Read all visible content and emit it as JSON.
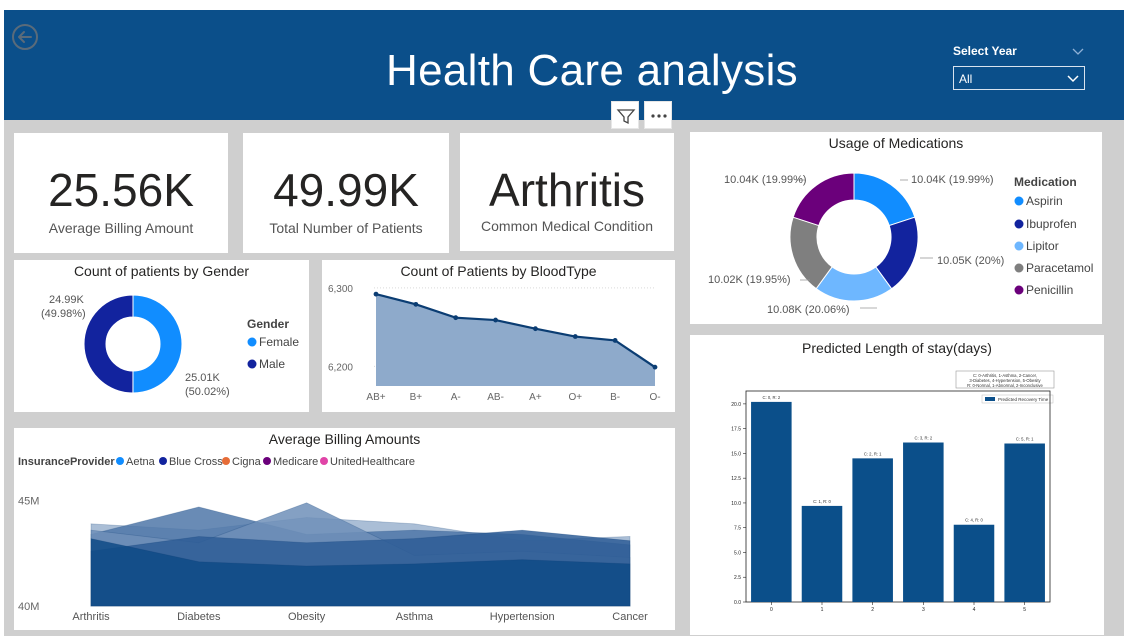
{
  "header": {
    "title": "Health Care analysis",
    "year_filter": {
      "label": "Select Year",
      "selected": "All"
    }
  },
  "kpis": [
    {
      "value": "25.56K",
      "label": "Average Billing Amount"
    },
    {
      "value": "49.99K",
      "label": "Total Number of Patients"
    },
    {
      "value": "Arthritis",
      "label": "Common Medical Condition"
    }
  ],
  "colors": {
    "banner": "#0b4f8a",
    "aspirin": "#118dff",
    "ibuprofen": "#12239e",
    "lipitor": "#6eb7ff",
    "paracetamol": "#7f7f7f",
    "penicillin": "#6b007b",
    "female": "#118dff",
    "male": "#12239e",
    "blood_area": "#8eaacb",
    "blood_line": "#0b3d73",
    "aetna": "#118dff",
    "bluecross": "#12239e",
    "cigna": "#e66c37",
    "medicare": "#6b007b",
    "unitedhealthcare": "#e044a7",
    "los_bar": "#0b4f8a"
  },
  "icons": {
    "back": "back-arrow-icon",
    "filter": "filter-icon",
    "more": "more-options-icon",
    "dropdown": "chevron-down-icon"
  },
  "chart_data": [
    {
      "id": "medications",
      "type": "pie",
      "title": "Usage of Medications",
      "legend_title": "Medication",
      "legend_position": "right",
      "slices": [
        {
          "name": "Aspirin",
          "value": 10.04,
          "label": "10.04K (19.99%)"
        },
        {
          "name": "Ibuprofen",
          "value": 10.05,
          "label": "10.05K (20%)"
        },
        {
          "name": "Lipitor",
          "value": 10.08,
          "label": "10.08K (20.06%)"
        },
        {
          "name": "Paracetamol",
          "value": 10.02,
          "label": "10.02K (19.95%)"
        },
        {
          "name": "Penicillin",
          "value": 10.04,
          "label": "10.04K (19.99%)"
        }
      ]
    },
    {
      "id": "gender",
      "type": "pie",
      "title": "Count of patients by Gender",
      "legend_title": "Gender",
      "legend_position": "right",
      "slices": [
        {
          "name": "Female",
          "value": 25.01,
          "label_value": "25.01K",
          "label_pct": "(50.02%)"
        },
        {
          "name": "Male",
          "value": 24.99,
          "label_value": "24.99K",
          "label_pct": "(49.98%)"
        }
      ]
    },
    {
      "id": "bloodtype",
      "type": "area",
      "title": "Count of Patients by BloodType",
      "categories": [
        "AB+",
        "B+",
        "A-",
        "AB-",
        "A+",
        "O+",
        "B-",
        "O-"
      ],
      "values": [
        6292,
        6279,
        6262,
        6259,
        6248,
        6238,
        6233,
        6199
      ],
      "ylim": [
        6175,
        6310
      ],
      "yticks": [
        6200,
        6300
      ],
      "ytick_labels": [
        "6,200",
        "6,300"
      ],
      "grid": true
    },
    {
      "id": "billing",
      "type": "area",
      "title": "Average Billing Amounts",
      "legend_title": "InsuranceProvider",
      "legend_position": "top-left",
      "categories": [
        "Arthritis",
        "Diabetes",
        "Obesity",
        "Asthma",
        "Hypertension",
        "Cancer"
      ],
      "ylim": [
        40,
        45.6
      ],
      "yticks": [
        40,
        45
      ],
      "ytick_labels": [
        "40M",
        "45M"
      ],
      "series": [
        {
          "name": "Aetna",
          "values": [
            43.9,
            43.6,
            44.2,
            43.9,
            43.1,
            43.3
          ]
        },
        {
          "name": "Blue Cross",
          "values": [
            43.4,
            44.7,
            43.4,
            43.6,
            43.4,
            42.9
          ]
        },
        {
          "name": "Cigna",
          "values": [
            43.6,
            43.0,
            44.9,
            42.4,
            42.6,
            42.3
          ]
        },
        {
          "name": "Medicare",
          "values": [
            42.6,
            43.3,
            43.0,
            43.2,
            43.6,
            43.1
          ]
        },
        {
          "name": "UnitedHealthcare",
          "values": [
            43.2,
            42.1,
            41.9,
            42.0,
            42.2,
            42.0
          ]
        }
      ]
    },
    {
      "id": "los",
      "type": "bar",
      "title": "Predicted Length of stay(days)",
      "legend_label": "Predicted Recovery Time",
      "note_lines": [
        "C: 0-Arthritis, 1-Asthma, 2-Cancer,",
        "3-Diabetes, 4-Hypertension, 5-Obesity",
        "R: 0-Normal, 1-Abnormal, 2-Inconclusive"
      ],
      "categories": [
        "0",
        "1",
        "2",
        "3",
        "4",
        "5"
      ],
      "values": [
        20.2,
        9.7,
        14.5,
        16.1,
        7.8,
        16.0
      ],
      "bar_labels": [
        "C: 0, R: 2",
        "C: 1, R: 0",
        "C: 2, R: 1",
        "C: 3, R: 2",
        "C: 4, R: 0",
        "C: 5, R: 1"
      ],
      "ylim": [
        0,
        21.3
      ],
      "yticks": [
        0,
        2.5,
        5,
        7.5,
        10,
        12.5,
        15,
        17.5,
        20
      ],
      "ytick_labels": [
        "0.0",
        "2.5",
        "5.0",
        "7.5",
        "10.0",
        "12.5",
        "15.0",
        "17.5",
        "20.0"
      ]
    }
  ]
}
